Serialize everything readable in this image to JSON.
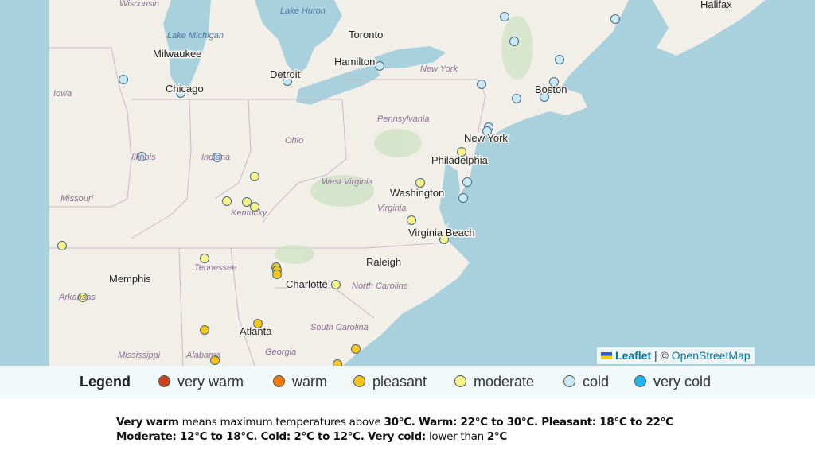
{
  "map": {
    "labels": [
      "Wisconsin",
      "Lake Huron",
      "Lake Michigan",
      "Milwaukee",
      "Toronto",
      "Hamilton",
      "Halifax",
      "Detroit",
      "Chicago",
      "Iowa",
      "New York",
      "Boston",
      "Pennsylvania",
      "Ohio",
      "Illinois",
      "Indiana",
      "New York",
      "Philadelphia",
      "West Virginia",
      "Washington",
      "Missouri",
      "Kentucky",
      "Virginia",
      "Virginia Beach",
      "Raleigh",
      "Tennessee",
      "Memphis",
      "Charlotte",
      "North Carolina",
      "Arkansas",
      "Atlanta",
      "South Carolina",
      "Georgia",
      "Mississippi",
      "Alabama"
    ]
  },
  "attribution": [
    "Leaflet",
    " | © ",
    "OpenStreetMap"
  ],
  "legend": {
    "title": "Legend",
    "items": [
      {
        "label": "very warm",
        "color": "#c8441f"
      },
      {
        "label": "warm",
        "color": "#ef7a12"
      },
      {
        "label": "pleasant",
        "color": "#f5c518"
      },
      {
        "label": "moderate",
        "color": "#f8f28a"
      },
      {
        "label": "cold",
        "color": "#c7e8f4"
      },
      {
        "label": "very cold",
        "color": "#20b7ef"
      }
    ]
  },
  "caption": {
    "lines": [
      [
        {
          "text": "Very warm",
          "bold": true
        },
        {
          "text": " means maximum temperatures above ",
          "bold": false
        },
        {
          "text": "30°C. Warm: 22°C to 30°C. Pleasant: 18°C to 22°C",
          "bold": true
        }
      ],
      [
        {
          "text": "Moderate: 12°C to 18°C. Cold: 2°C to 12°C. Very cold:",
          "bold": true
        },
        {
          "text": " lower than ",
          "bold": false
        },
        {
          "text": "2°C",
          "bold": true
        }
      ]
    ]
  }
}
